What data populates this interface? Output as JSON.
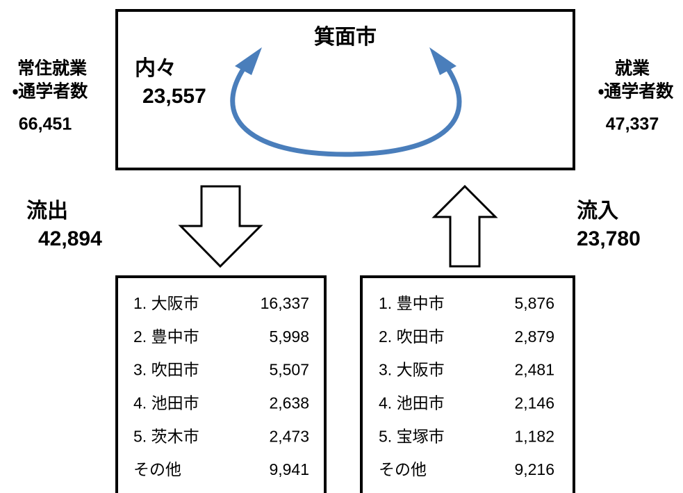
{
  "header": {
    "title": "箕面市"
  },
  "internal": {
    "label": "内々",
    "value": "23,557"
  },
  "resident": {
    "label_lines": [
      "常住就業",
      "・通学者数"
    ],
    "value": "66,451"
  },
  "workplace": {
    "label_lines": [
      "就業",
      "・通学者数"
    ],
    "value": "47,337"
  },
  "outflow": {
    "label": "流出",
    "value": "42,894",
    "rows": [
      [
        "1. 大阪市",
        "16,337"
      ],
      [
        "2. 豊中市",
        "5,998"
      ],
      [
        "3. 吹田市",
        "5,507"
      ],
      [
        "4. 池田市",
        "2,638"
      ],
      [
        "5. 茨木市",
        "2,473"
      ],
      [
        "その他",
        "9,941"
      ]
    ]
  },
  "inflow": {
    "label": "流入",
    "value": "23,780",
    "rows": [
      [
        "1. 豊中市",
        "5,876"
      ],
      [
        "2. 吹田市",
        "2,879"
      ],
      [
        "3. 大阪市",
        "2,481"
      ],
      [
        "4. 池田市",
        "2,146"
      ],
      [
        "5. 宝塚市",
        "1,182"
      ],
      [
        "その他",
        "9,216"
      ]
    ]
  }
}
